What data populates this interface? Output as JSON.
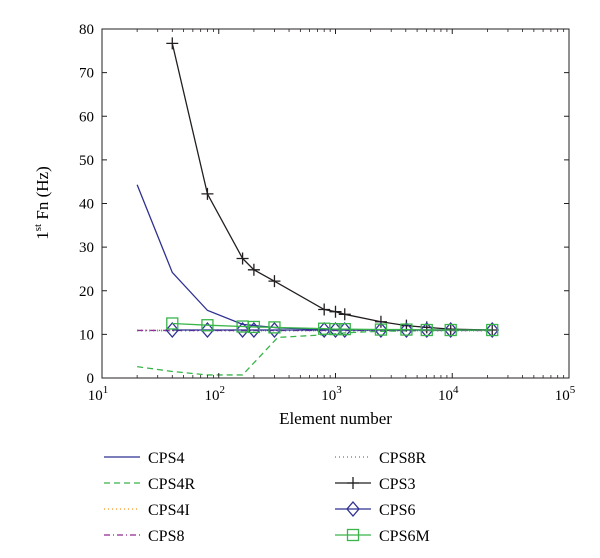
{
  "chart_data": {
    "type": "line",
    "xlabel": "Element number",
    "ylabel_base": "1",
    "ylabel_sup": "st",
    "ylabel_rest": " Fn (Hz)",
    "xscale": "log",
    "xlim": [
      10,
      100000
    ],
    "ylim": [
      0,
      80
    ],
    "grid": false,
    "legend_position": "below plot",
    "x_ticks": [
      {
        "value": 10,
        "base": "10",
        "exp": "1"
      },
      {
        "value": 100,
        "base": "10",
        "exp": "2"
      },
      {
        "value": 1000,
        "base": "10",
        "exp": "3"
      },
      {
        "value": 10000,
        "base": "10",
        "exp": "4"
      },
      {
        "value": 100000,
        "base": "10",
        "exp": "5"
      }
    ],
    "y_ticks": [
      0,
      10,
      20,
      30,
      40,
      50,
      60,
      70,
      80
    ],
    "series": [
      {
        "name": "CPS4",
        "color": "#2e3192",
        "dash": "",
        "marker": "none",
        "x": [
          20,
          40,
          80,
          160,
          320,
          800,
          1280,
          2450,
          4050,
          6050,
          9700,
          22000
        ],
        "y": [
          44.3,
          24.2,
          15.5,
          12.3,
          11.5,
          11.1,
          11.0,
          11.0,
          11.0,
          11.0,
          11.0,
          11.0
        ]
      },
      {
        "name": "CPS4R",
        "color": "#39b54a",
        "dash": "6,4",
        "marker": "none",
        "x": [
          20,
          40,
          80,
          160,
          320,
          800,
          1280,
          2450,
          4050,
          6050,
          9700,
          22000
        ],
        "y": [
          2.6,
          1.5,
          0.7,
          0.7,
          9.3,
          9.9,
          10.4,
          10.7,
          10.8,
          10.9,
          10.9,
          11.0
        ]
      },
      {
        "name": "CPS4I",
        "color": "#f7941d",
        "dash": "1,3",
        "marker": "none",
        "x": [
          20,
          40,
          80,
          160,
          320,
          800,
          1280,
          2450,
          4050,
          6050,
          9700,
          22000
        ],
        "y": [
          11.0,
          11.0,
          11.0,
          11.0,
          11.0,
          11.0,
          11.0,
          11.0,
          11.0,
          11.0,
          11.0,
          11.0
        ]
      },
      {
        "name": "CPS8",
        "color": "#92278f",
        "dash": "6,3,1,3",
        "marker": "none",
        "x": [
          20,
          40,
          80,
          160,
          320,
          800,
          1280,
          2450,
          4050,
          6050,
          9700,
          22000
        ],
        "y": [
          10.9,
          10.9,
          10.9,
          10.9,
          10.9,
          10.9,
          10.9,
          10.9,
          10.9,
          10.9,
          10.9,
          10.9
        ]
      },
      {
        "name": "CPS8R",
        "color": "#00a99d",
        "dash": "1,3",
        "marker": "none",
        "x": [
          20,
          40,
          80,
          160,
          320,
          800,
          1280,
          2450,
          4050,
          6050,
          9700,
          22000
        ],
        "y": [
          10.8,
          10.8,
          10.8,
          10.8,
          10.8,
          10.8,
          10.8,
          10.8,
          10.8,
          10.8,
          10.8,
          10.8
        ]
      },
      {
        "name": "CPS3",
        "color": "#231f20",
        "dash": "",
        "marker": "plus",
        "x": [
          40,
          80,
          160,
          200,
          300,
          800,
          1000,
          1200,
          2450,
          4050,
          6050,
          9700,
          22000
        ],
        "y": [
          76.7,
          42.2,
          27.4,
          24.8,
          22.2,
          15.7,
          15.2,
          14.6,
          12.9,
          12.0,
          11.6,
          11.2,
          11.0
        ]
      },
      {
        "name": "CPS6",
        "color": "#2e3192",
        "dash": "",
        "marker": "diamond",
        "x": [
          40,
          80,
          160,
          200,
          300,
          800,
          1000,
          1200,
          2450,
          4050,
          6050,
          9700,
          22000
        ],
        "y": [
          11.0,
          11.0,
          11.0,
          11.0,
          11.0,
          11.0,
          11.0,
          11.0,
          11.0,
          11.0,
          11.0,
          11.0,
          11.0
        ]
      },
      {
        "name": "CPS6M",
        "color": "#39b54a",
        "dash": "",
        "marker": "square",
        "x": [
          40,
          80,
          160,
          200,
          300,
          800,
          1000,
          1200,
          2450,
          4050,
          6050,
          9700,
          22000
        ],
        "y": [
          12.5,
          12.1,
          11.8,
          11.7,
          11.6,
          11.3,
          11.2,
          11.2,
          11.1,
          11.1,
          11.0,
          11.0,
          11.0
        ]
      }
    ]
  }
}
